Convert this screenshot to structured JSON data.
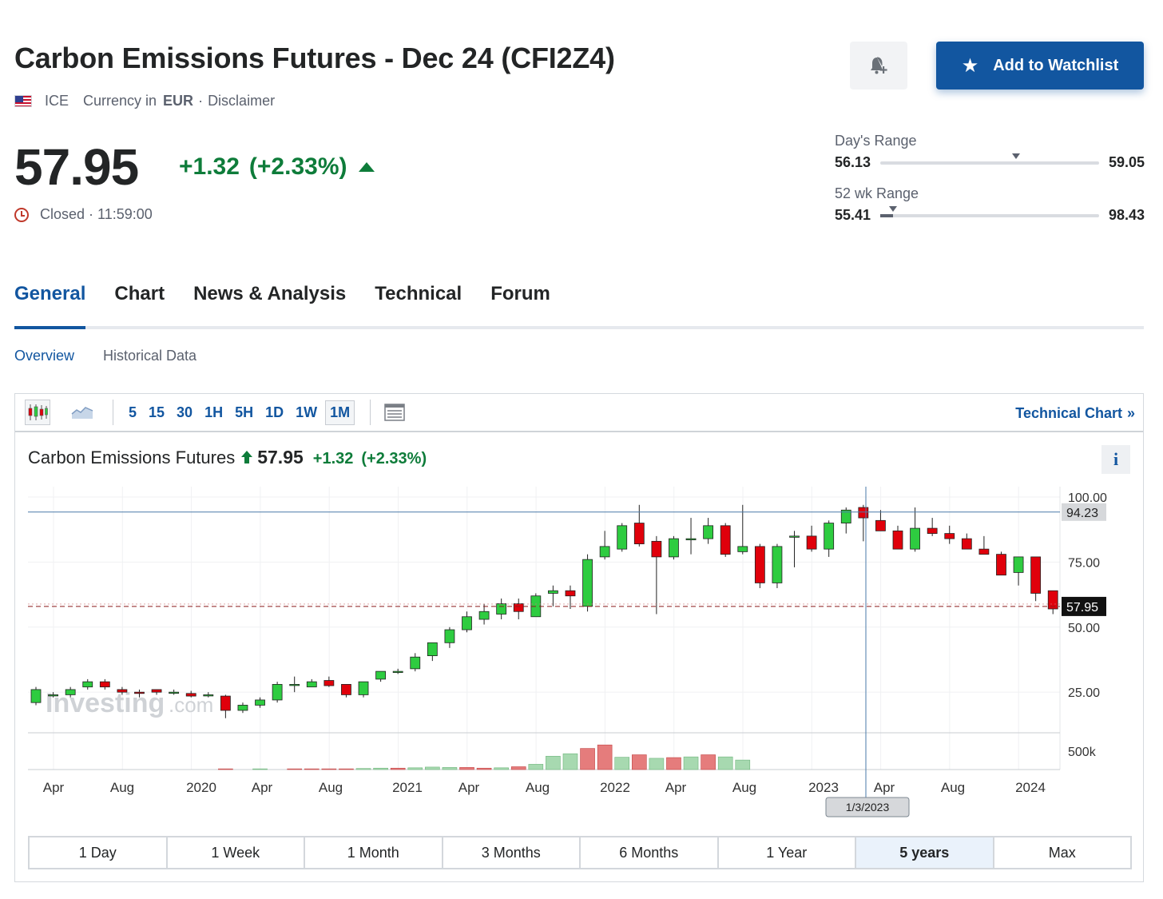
{
  "instrument": {
    "title": "Carbon Emissions Futures - Dec 24 (CFI2Z4)",
    "exchange": "ICE",
    "currency_label": "Currency in",
    "currency_code": "EUR",
    "separator": "·",
    "disclaimer": "Disclaimer"
  },
  "actions": {
    "bell_icon": "bell-plus-icon",
    "watchlist_label": "Add to Watchlist"
  },
  "quote": {
    "price": "57.95",
    "change": "+1.32",
    "change_pct": "(+2.33%)",
    "status": "Closed · 11:59:00",
    "up_color": "#0e7c3a"
  },
  "ranges": {
    "day": {
      "label": "Day's Range",
      "low": "56.13",
      "high": "59.05",
      "marker": 0.62,
      "fill": 0
    },
    "week52": {
      "label": "52 wk Range",
      "low": "55.41",
      "high": "98.43",
      "marker": 0.06,
      "fill": 0.06
    }
  },
  "tabs": [
    "General",
    "Chart",
    "News & Analysis",
    "Technical",
    "Forum"
  ],
  "active_tab": 0,
  "subtabs": [
    "Overview",
    "Historical Data"
  ],
  "active_subtab": 0,
  "toolbar": {
    "intervals": [
      "5",
      "15",
      "30",
      "1H",
      "5H",
      "1D",
      "1W",
      "1M"
    ],
    "active_interval": 7,
    "technical_link": "Technical Chart",
    "chevron": "»"
  },
  "chart_header": {
    "name": "Carbon Emissions Futures",
    "price": "57.95",
    "change": "+1.32",
    "change_pct": "(+2.33%)",
    "info": "i"
  },
  "chart_data": {
    "type": "candlestick",
    "interval": "1M",
    "y_ticks": [
      "100.00",
      "75.00",
      "50.00",
      "25.00"
    ],
    "ylim": [
      0,
      105
    ],
    "volume_tick": "500k",
    "x_labels": [
      "Apr",
      "Aug",
      "2020",
      "Apr",
      "Aug",
      "2021",
      "Apr",
      "Aug",
      "2022",
      "Apr",
      "Aug",
      "2023",
      "Apr",
      "Aug",
      "2024"
    ],
    "last_price_label": "57.95",
    "crosshair_price_label": "94.23",
    "crosshair_date_label": "1/3/2023",
    "watermark": "Investing",
    "watermark_suffix": ".com",
    "up_color": "#2ecc40",
    "down_color": "#e0000b",
    "vol_up_color": "#a7d9b0",
    "vol_down_color": "#e57c7c",
    "candles": [
      {
        "o": 21,
        "h": 27,
        "l": 20,
        "c": 26
      },
      {
        "o": 24,
        "h": 25,
        "l": 23,
        "c": 24
      },
      {
        "o": 24,
        "h": 27,
        "l": 23,
        "c": 26
      },
      {
        "o": 27,
        "h": 30,
        "l": 26,
        "c": 29
      },
      {
        "o": 29,
        "h": 30,
        "l": 26,
        "c": 27
      },
      {
        "o": 26,
        "h": 27,
        "l": 24,
        "c": 25
      },
      {
        "o": 25,
        "h": 26,
        "l": 23,
        "c": 24.5
      },
      {
        "o": 26,
        "h": 26,
        "l": 24,
        "c": 25
      },
      {
        "o": 25,
        "h": 26,
        "l": 24,
        "c": 25
      },
      {
        "o": 24.5,
        "h": 25.5,
        "l": 23,
        "c": 23.5
      },
      {
        "o": 24,
        "h": 25,
        "l": 23,
        "c": 24
      },
      {
        "o": 23.5,
        "h": 24,
        "l": 15,
        "c": 18
      },
      {
        "o": 18,
        "h": 21,
        "l": 17,
        "c": 20
      },
      {
        "o": 20,
        "h": 23,
        "l": 19,
        "c": 22
      },
      {
        "o": 22,
        "h": 29,
        "l": 21,
        "c": 28
      },
      {
        "o": 28,
        "h": 31,
        "l": 25,
        "c": 28
      },
      {
        "o": 27,
        "h": 30,
        "l": 27,
        "c": 29
      },
      {
        "o": 29.5,
        "h": 31,
        "l": 27,
        "c": 27.5
      },
      {
        "o": 28,
        "h": 28,
        "l": 23,
        "c": 24
      },
      {
        "o": 24,
        "h": 29,
        "l": 23,
        "c": 29
      },
      {
        "o": 30,
        "h": 33,
        "l": 29,
        "c": 33
      },
      {
        "o": 33,
        "h": 34,
        "l": 32,
        "c": 33
      },
      {
        "o": 34,
        "h": 40,
        "l": 33,
        "c": 38.5
      },
      {
        "o": 39,
        "h": 43,
        "l": 37,
        "c": 44
      },
      {
        "o": 44,
        "h": 50,
        "l": 42,
        "c": 49
      },
      {
        "o": 49,
        "h": 56,
        "l": 48,
        "c": 54
      },
      {
        "o": 53,
        "h": 59,
        "l": 51,
        "c": 56
      },
      {
        "o": 55,
        "h": 61,
        "l": 53,
        "c": 59
      },
      {
        "o": 59,
        "h": 61,
        "l": 53,
        "c": 56
      },
      {
        "o": 54,
        "h": 63,
        "l": 54,
        "c": 62
      },
      {
        "o": 63,
        "h": 66,
        "l": 58,
        "c": 64
      },
      {
        "o": 64,
        "h": 66,
        "l": 57,
        "c": 62
      },
      {
        "o": 58,
        "h": 78,
        "l": 56,
        "c": 76
      },
      {
        "o": 77,
        "h": 87,
        "l": 76,
        "c": 81
      },
      {
        "o": 80,
        "h": 90,
        "l": 79,
        "c": 89
      },
      {
        "o": 90,
        "h": 97,
        "l": 81,
        "c": 82
      },
      {
        "o": 83,
        "h": 85,
        "l": 55,
        "c": 77
      },
      {
        "o": 77,
        "h": 85,
        "l": 76,
        "c": 84
      },
      {
        "o": 84,
        "h": 92,
        "l": 78,
        "c": 84
      },
      {
        "o": 84,
        "h": 92,
        "l": 82,
        "c": 89
      },
      {
        "o": 89,
        "h": 90,
        "l": 77,
        "c": 78
      },
      {
        "o": 79,
        "h": 97,
        "l": 78,
        "c": 81
      },
      {
        "o": 81,
        "h": 82,
        "l": 65,
        "c": 67
      },
      {
        "o": 67,
        "h": 82,
        "l": 65,
        "c": 81
      },
      {
        "o": 85,
        "h": 87,
        "l": 73,
        "c": 85
      },
      {
        "o": 85,
        "h": 89,
        "l": 79,
        "c": 80
      },
      {
        "o": 80,
        "h": 91,
        "l": 77,
        "c": 90
      },
      {
        "o": 90,
        "h": 96,
        "l": 86,
        "c": 95
      },
      {
        "o": 96,
        "h": 97,
        "l": 83,
        "c": 92
      },
      {
        "o": 91,
        "h": 95,
        "l": 88,
        "c": 87
      },
      {
        "o": 87,
        "h": 89,
        "l": 80,
        "c": 80
      },
      {
        "o": 80,
        "h": 96,
        "l": 79,
        "c": 88
      },
      {
        "o": 88,
        "h": 92,
        "l": 85,
        "c": 86
      },
      {
        "o": 86,
        "h": 89,
        "l": 82,
        "c": 84
      },
      {
        "o": 84,
        "h": 86,
        "l": 81,
        "c": 80
      },
      {
        "o": 80,
        "h": 85,
        "l": 78,
        "c": 78
      },
      {
        "o": 78,
        "h": 79,
        "l": 70,
        "c": 70
      },
      {
        "o": 71,
        "h": 77,
        "l": 66,
        "c": 77
      },
      {
        "o": 77,
        "h": 77,
        "l": 60,
        "c": 63
      },
      {
        "o": 64,
        "h": 64,
        "l": 55,
        "c": 57
      }
    ],
    "volume": [
      0,
      0,
      0,
      0,
      0,
      0,
      0,
      0,
      0,
      0,
      0,
      {
        "v": 0.02,
        "d": 1
      },
      0,
      {
        "v": 0.02,
        "d": 0
      },
      0,
      {
        "v": 0.02,
        "d": 1
      },
      {
        "v": 0.02,
        "d": 1
      },
      {
        "v": 0.02,
        "d": 1
      },
      {
        "v": 0.02,
        "d": 1
      },
      {
        "v": 0.03,
        "d": 0
      },
      {
        "v": 0.04,
        "d": 0
      },
      {
        "v": 0.04,
        "d": 1
      },
      {
        "v": 0.05,
        "d": 0
      },
      {
        "v": 0.07,
        "d": 0
      },
      {
        "v": 0.06,
        "d": 0
      },
      {
        "v": 0.06,
        "d": 1
      },
      {
        "v": 0.04,
        "d": 1
      },
      {
        "v": 0.05,
        "d": 0
      },
      {
        "v": 0.08,
        "d": 1
      },
      {
        "v": 0.15,
        "d": 0
      },
      {
        "v": 0.38,
        "d": 0
      },
      {
        "v": 0.45,
        "d": 0
      },
      {
        "v": 0.6,
        "d": 1
      },
      {
        "v": 0.7,
        "d": 1
      },
      {
        "v": 0.35,
        "d": 0
      },
      {
        "v": 0.42,
        "d": 1
      },
      {
        "v": 0.32,
        "d": 0
      },
      {
        "v": 0.34,
        "d": 1
      },
      {
        "v": 0.36,
        "d": 0
      },
      {
        "v": 0.42,
        "d": 1
      },
      {
        "v": 0.36,
        "d": 0
      },
      {
        "v": 0.27,
        "d": 0
      }
    ]
  },
  "periods": [
    "1 Day",
    "1 Week",
    "1 Month",
    "3 Months",
    "6 Months",
    "1 Year",
    "5 years",
    "Max"
  ],
  "active_period": 6
}
